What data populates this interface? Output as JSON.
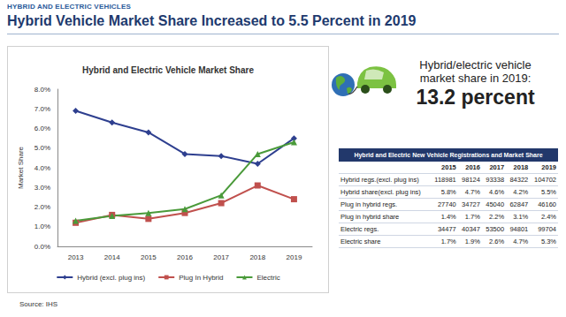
{
  "header": "HYBRID AND ELECTRIC VEHICLES",
  "title": "Hybrid Vehicle Market Share Increased to 5.5 Percent in 2019",
  "callout": {
    "lines": [
      "Hybrid/electric vehicle",
      "market share in 2019:"
    ],
    "value": "13.2 percent"
  },
  "source": "Source: IHS",
  "table": {
    "title": "Hybrid and Electric New Vehicle Registrations and Market Share",
    "columns": [
      "",
      "2015",
      "2016",
      "2017",
      "2018",
      "2019"
    ],
    "rows": [
      [
        "Hybrid regs.(excl. plug ins)",
        "118981",
        "98124",
        "93338",
        "84322",
        "104702"
      ],
      [
        "Hybrid share(excl. plug ins)",
        "5.8%",
        "4.7%",
        "4.6%",
        "4.2%",
        "5.5%"
      ],
      [
        "Plug in hybrid regs.",
        "27740",
        "34727",
        "45040",
        "62847",
        "46160"
      ],
      [
        "Plug in hybrid share",
        "1.4%",
        "1.7%",
        "2.2%",
        "3.1%",
        "2.4%"
      ],
      [
        "Electric regs.",
        "34477",
        "40347",
        "53500",
        "94801",
        "99704"
      ],
      [
        "Electric share",
        "1.7%",
        "1.9%",
        "2.6%",
        "4.7%",
        "5.3%"
      ]
    ]
  },
  "chart_data": {
    "type": "line",
    "title": "Hybrid and Electric Vehicle Market Share",
    "y_label": "Market Share",
    "categories": [
      "2013",
      "2014",
      "2015",
      "2016",
      "2017",
      "2018",
      "2019"
    ],
    "series": [
      {
        "name": "Hybrid (excl. plug ins)",
        "color": "#2e3f8f",
        "marker": "diamond",
        "values": [
          6.9,
          6.3,
          5.8,
          4.7,
          4.6,
          4.2,
          5.5
        ]
      },
      {
        "name": "Plug In Hybrid",
        "color": "#c0504d",
        "marker": "square",
        "values": [
          1.2,
          1.6,
          1.4,
          1.7,
          2.2,
          3.1,
          2.4
        ]
      },
      {
        "name": "Electric",
        "color": "#4a9a3a",
        "marker": "triangle",
        "values": [
          1.3,
          1.55,
          1.7,
          1.9,
          2.6,
          4.7,
          5.3
        ]
      }
    ],
    "ylim": [
      0,
      8
    ],
    "yticks": [
      {
        "value": 0,
        "label": "0.0%"
      },
      {
        "value": 1,
        "label": "1.0%"
      },
      {
        "value": 2,
        "label": "2.0%"
      },
      {
        "value": 3,
        "label": "3.0%"
      },
      {
        "value": 4,
        "label": "4.0%"
      },
      {
        "value": 5,
        "label": "5.0%"
      },
      {
        "value": 6,
        "label": "6.0%"
      },
      {
        "value": 7,
        "label": "7.0%"
      },
      {
        "value": 8,
        "label": "8.0%"
      }
    ],
    "grid": false,
    "legend": "bottom"
  }
}
